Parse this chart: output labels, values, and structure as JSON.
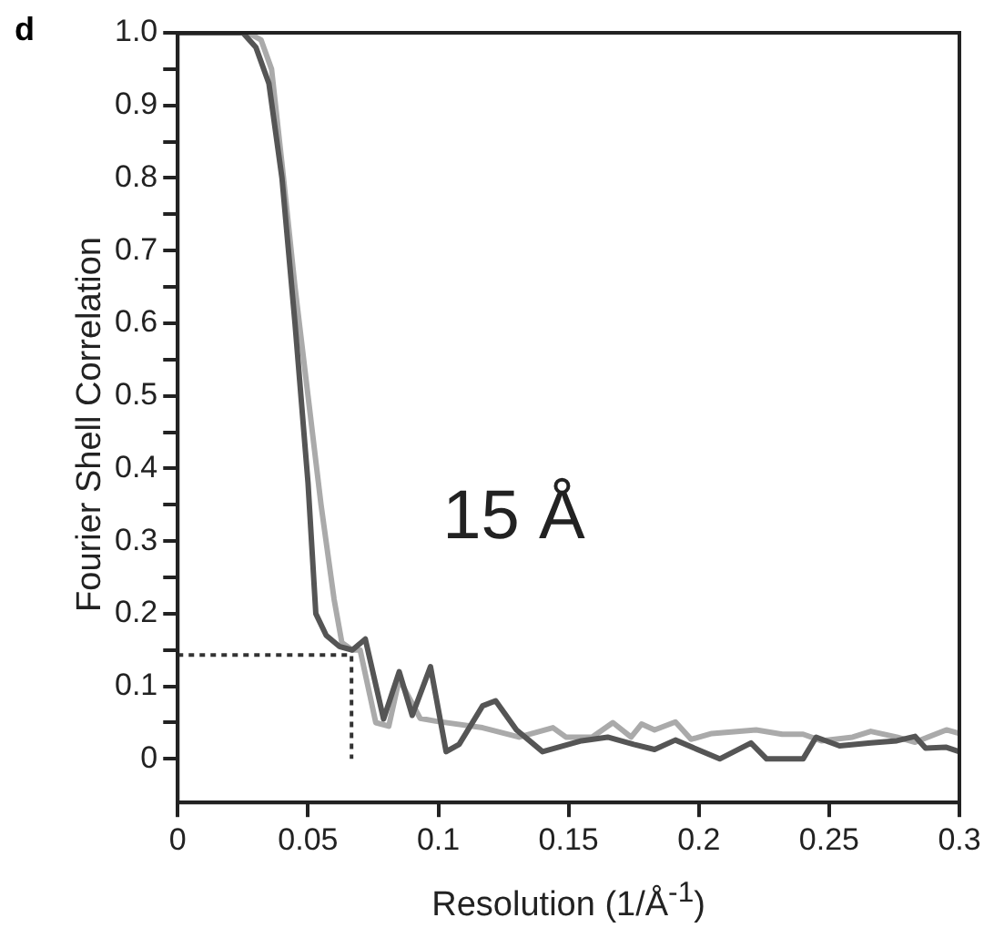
{
  "chart_data": {
    "type": "line",
    "xlabel": "Resolution (1/Å$^{-1}$)",
    "ylabel": "Fourier Shell Correlation",
    "annotations": [
      "d",
      "15 Å"
    ],
    "xlim": [
      0,
      0.3
    ],
    "xticks": [
      0,
      0.05,
      0.1,
      0.15,
      0.2,
      0.25,
      0.3
    ],
    "ylim": [
      -0.06,
      1.0
    ],
    "yticks": [
      0,
      {
        "value": 0.05,
        "label": null
      },
      0.1,
      {
        "value": 0.15,
        "label": null
      },
      0.2,
      {
        "value": 0.25,
        "label": null
      },
      0.3,
      {
        "value": 0.35,
        "label": null
      },
      0.4,
      {
        "value": 0.45,
        "label": null
      },
      0.5,
      {
        "value": 0.55,
        "label": null
      },
      0.6,
      {
        "value": 0.65,
        "label": null
      },
      0.7,
      {
        "value": 0.75,
        "label": null
      },
      0.8,
      {
        "value": 0.85,
        "label": null
      },
      0.9,
      {
        "value": 0.95,
        "label": null
      },
      {
        "value": 1.0,
        "label": "1.0"
      }
    ],
    "grid": false,
    "legend": false,
    "marker": "none",
    "line_style": "solid",
    "series": [
      {
        "color": "#555555",
        "x": [
          0,
          0.025,
          0.03,
          0.035,
          0.04,
          0.045,
          0.05,
          0.053,
          0.057,
          0.062,
          0.067,
          0.072,
          0.079,
          0.085,
          0.09,
          0.097,
          0.103,
          0.108,
          0.117,
          0.122,
          0.13,
          0.135,
          0.14,
          0.155,
          0.165,
          0.175,
          0.183,
          0.191,
          0.208,
          0.22,
          0.226,
          0.24,
          0.245,
          0.254,
          0.266,
          0.276,
          0.283,
          0.287,
          0.295,
          0.3
        ],
        "values": [
          1,
          1,
          0.98,
          0.93,
          0.8,
          0.6,
          0.38,
          0.2,
          0.17,
          0.155,
          0.15,
          0.165,
          0.055,
          0.12,
          0.06,
          0.127,
          0.01,
          0.02,
          0.073,
          0.08,
          0.04,
          0.025,
          0.01,
          0.025,
          0.03,
          0.02,
          0.013,
          0.026,
          0.0,
          0.022,
          0.0,
          0.0,
          0.03,
          0.018,
          0.022,
          0.025,
          0.031,
          0.015,
          0.016,
          0.01
        ]
      },
      {
        "color": "#aaaaaa",
        "x": [
          0,
          0.027,
          0.032,
          0.036,
          0.04,
          0.045,
          0.05,
          0.055,
          0.06,
          0.063,
          0.067,
          0.07,
          0.076,
          0.081,
          0.085,
          0.093,
          0.099,
          0.117,
          0.131,
          0.144,
          0.149,
          0.159,
          0.167,
          0.174,
          0.178,
          0.183,
          0.191,
          0.197,
          0.205,
          0.222,
          0.232,
          0.24,
          0.247,
          0.259,
          0.266,
          0.276,
          0.283,
          0.295,
          0.3
        ],
        "values": [
          1,
          1,
          0.99,
          0.95,
          0.82,
          0.65,
          0.5,
          0.35,
          0.22,
          0.16,
          0.15,
          0.15,
          0.05,
          0.045,
          0.11,
          0.056,
          0.052,
          0.043,
          0.03,
          0.043,
          0.03,
          0.03,
          0.05,
          0.03,
          0.048,
          0.04,
          0.051,
          0.027,
          0.035,
          0.04,
          0.034,
          0.034,
          0.025,
          0.03,
          0.038,
          0.03,
          0.023,
          0.04,
          0.035
        ]
      },
      {
        "color": "#333333",
        "line_style": "dotted",
        "x": [
          0,
          0.0667,
          0.0667
        ],
        "values": [
          0.143,
          0.143,
          0
        ]
      }
    ]
  }
}
